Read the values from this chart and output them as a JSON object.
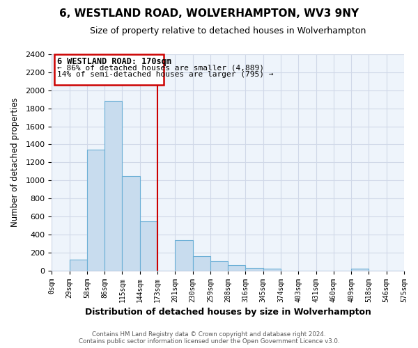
{
  "title": "6, WESTLAND ROAD, WOLVERHAMPTON, WV3 9NY",
  "subtitle": "Size of property relative to detached houses in Wolverhampton",
  "xlabel": "Distribution of detached houses by size in Wolverhampton",
  "ylabel": "Number of detached properties",
  "footer_line1": "Contains HM Land Registry data © Crown copyright and database right 2024.",
  "footer_line2": "Contains public sector information licensed under the Open Government Licence v3.0.",
  "bin_labels": [
    "0sqm",
    "29sqm",
    "58sqm",
    "86sqm",
    "115sqm",
    "144sqm",
    "173sqm",
    "201sqm",
    "230sqm",
    "259sqm",
    "288sqm",
    "316sqm",
    "345sqm",
    "374sqm",
    "403sqm",
    "431sqm",
    "460sqm",
    "489sqm",
    "518sqm",
    "546sqm",
    "575sqm"
  ],
  "bar_heights": [
    0,
    120,
    1340,
    1880,
    1050,
    550,
    0,
    335,
    160,
    105,
    60,
    30,
    20,
    0,
    0,
    0,
    0,
    20,
    0,
    0,
    20
  ],
  "bar_color": "#c8dcee",
  "bar_edge_color": "#6bafd6",
  "vline_x_bin": 6,
  "vline_color": "#cc0000",
  "annotation_title": "6 WESTLAND ROAD: 170sqm",
  "annotation_line2": "← 86% of detached houses are smaller (4,889)",
  "annotation_line3": "14% of semi-detached houses are larger (795) →",
  "ylim": [
    0,
    2400
  ],
  "yticks": [
    0,
    200,
    400,
    600,
    800,
    1000,
    1200,
    1400,
    1600,
    1800,
    2000,
    2200,
    2400
  ],
  "background_color": "#ffffff",
  "grid_color": "#d0d8e8",
  "plot_bg_color": "#eef4fb"
}
